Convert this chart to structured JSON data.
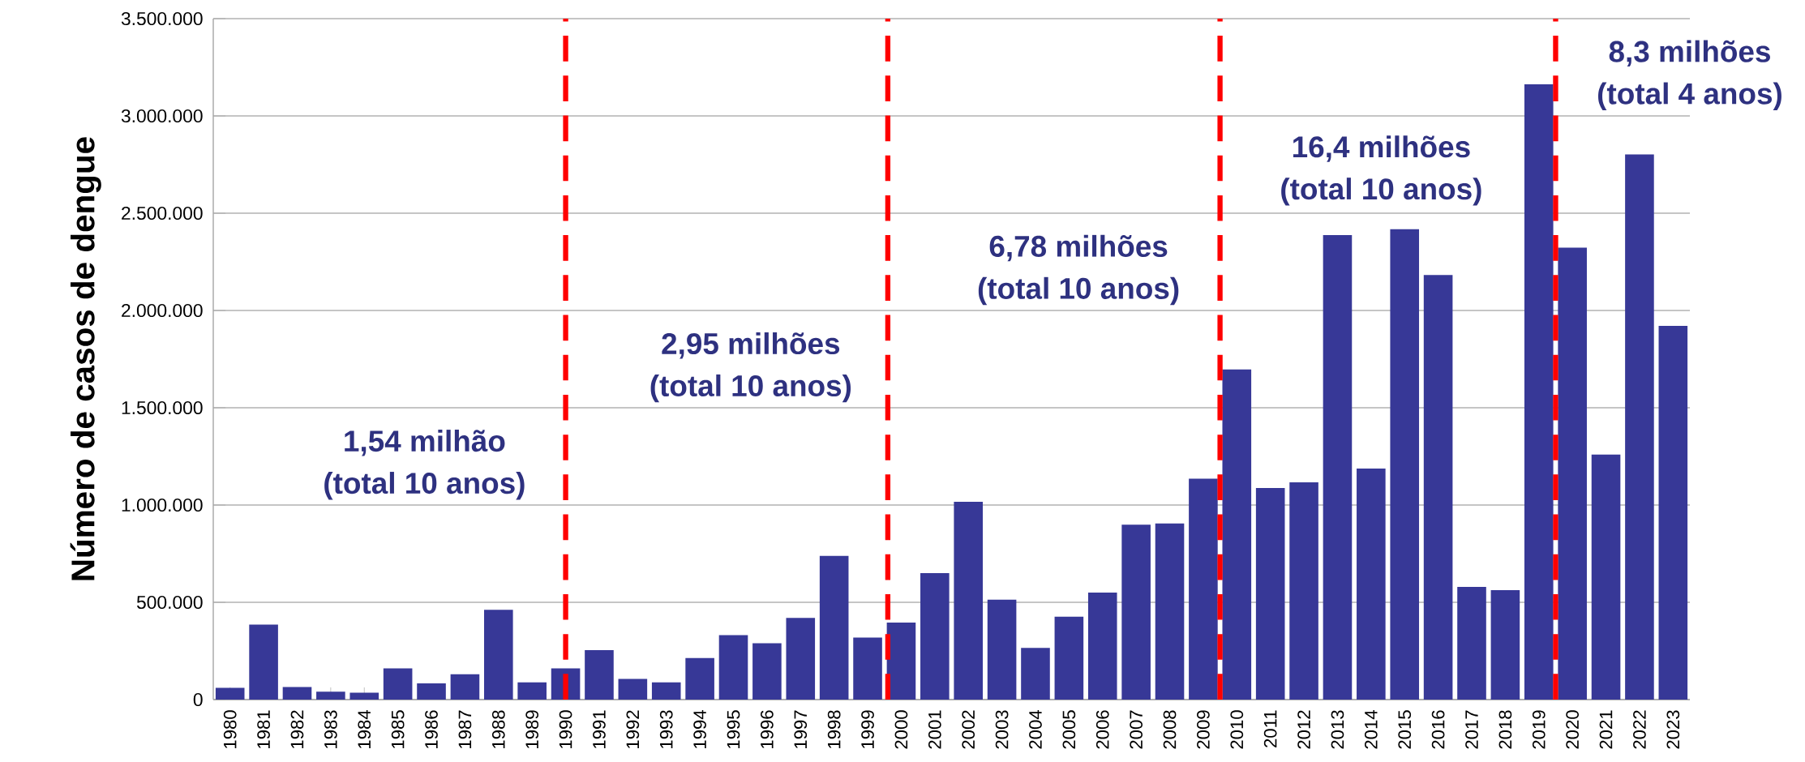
{
  "chart_data": {
    "type": "bar",
    "ylabel": "Número de casos de dengue",
    "color": "#373897",
    "x": [
      1980,
      1981,
      1982,
      1983,
      1984,
      1985,
      1986,
      1987,
      1988,
      1989,
      1990,
      1991,
      1992,
      1993,
      1994,
      1995,
      1996,
      1997,
      1998,
      1999,
      2000,
      2001,
      2002,
      2003,
      2004,
      2005,
      2006,
      2007,
      2008,
      2009,
      2010,
      2011,
      2012,
      2013,
      2014,
      2015,
      2016,
      2017,
      2018,
      2019,
      2020,
      2021,
      2022,
      2023
    ],
    "values": [
      60000,
      385000,
      65000,
      41000,
      35000,
      160000,
      83000,
      130000,
      461000,
      89000,
      160000,
      254000,
      106000,
      89000,
      213000,
      331000,
      290000,
      420000,
      739000,
      319000,
      396000,
      650000,
      1017000,
      514000,
      266000,
      426000,
      550000,
      899000,
      905000,
      1135000,
      1697000,
      1088000,
      1117000,
      2388000,
      1188000,
      2418000,
      2182000,
      579000,
      562000,
      3163000,
      2323000,
      1259000,
      2802000,
      1921000
    ],
    "xlim": [
      1979.5,
      2023.5
    ],
    "xticks": [
      1980,
      1981,
      1982,
      1983,
      1984,
      1985,
      1986,
      1987,
      1988,
      1989,
      1990,
      1991,
      1992,
      1993,
      1994,
      1995,
      1996,
      1997,
      1998,
      1999,
      2000,
      2001,
      2002,
      2003,
      2004,
      2005,
      2006,
      2007,
      2008,
      2009,
      2010,
      2011,
      2012,
      2013,
      2014,
      2015,
      2016,
      2017,
      2018,
      2019,
      2020,
      2021,
      2022,
      2023
    ],
    "ylim": [
      0,
      3500000
    ],
    "yticks": [
      0,
      {
        "value": 500000,
        "label": "500.000"
      },
      {
        "value": 1000000,
        "label": "1.000.000"
      },
      {
        "value": 1500000,
        "label": "1.500.000"
      },
      {
        "value": 2000000,
        "label": "2.000.000"
      },
      {
        "value": 2500000,
        "label": "2.500.000"
      },
      {
        "value": 3000000,
        "label": "3.000.000"
      },
      {
        "value": 3500000,
        "label": "3.500.000"
      }
    ],
    "grid": "y",
    "ref_lines": [
      {
        "axis": "x",
        "value": 1990,
        "color": "#ff0000",
        "line_style": "dashed"
      },
      {
        "axis": "x",
        "value": 1999.6,
        "color": "#ff0000",
        "line_style": "dashed"
      },
      {
        "axis": "x",
        "value": 2009.5,
        "color": "#ff0000",
        "line_style": "dashed"
      },
      {
        "axis": "x",
        "value": 2019.5,
        "color": "#ff0000",
        "line_style": "dashed"
      }
    ],
    "annotations": [
      "1,54 milhão",
      "(total 10 anos)",
      "2,95 milhões",
      "(total 10 anos)",
      "6,78 milhões",
      "(total 10 anos)",
      "16,4 milhões",
      "(total 10 anos)",
      "8,3 milhões",
      "(total 4 anos)"
    ]
  }
}
